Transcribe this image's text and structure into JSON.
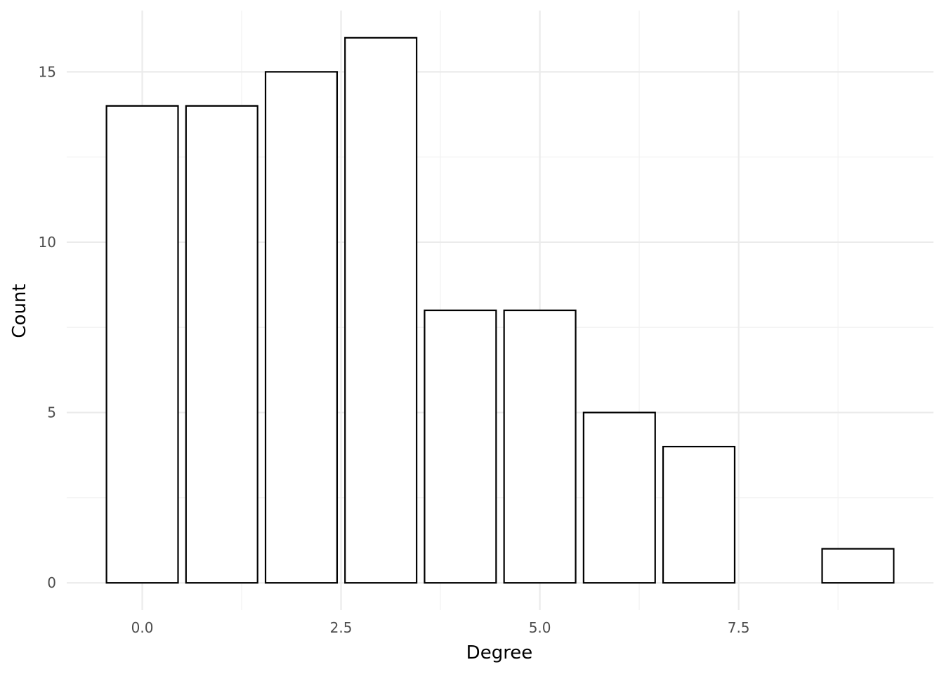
{
  "chart_data": {
    "type": "bar",
    "title": "",
    "xlabel": "Degree",
    "ylabel": "Count",
    "x": [
      0,
      1,
      2,
      3,
      4,
      5,
      6,
      7,
      9
    ],
    "values": [
      14,
      14,
      15,
      16,
      8,
      8,
      5,
      4,
      1
    ],
    "bar_width": 0.9,
    "xlim": [
      -0.95,
      9.95
    ],
    "ylim": [
      -0.8,
      16.8
    ],
    "x_ticks": [
      0,
      2.5,
      5,
      7.5
    ],
    "x_tick_labels": [
      "0.0",
      "2.5",
      "5.0",
      "7.5"
    ],
    "x_minor_ticks": [
      1.25,
      3.75,
      6.25,
      8.75
    ],
    "y_ticks": [
      0,
      5,
      10,
      15
    ],
    "y_tick_labels": [
      "0",
      "5",
      "10",
      "15"
    ],
    "y_minor_ticks": [
      2.5,
      7.5,
      12.5
    ],
    "grid": true,
    "legend": "none",
    "bar_fill": "#ffffff",
    "bar_outline": "#000000",
    "grid_color": "#ebebeb"
  }
}
